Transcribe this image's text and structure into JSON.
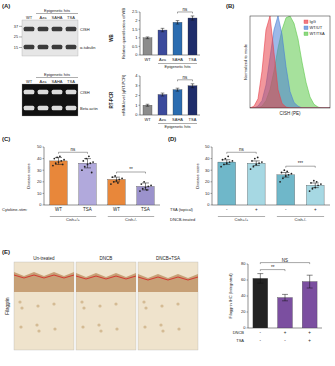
{
  "figure": {
    "panel_labels": [
      "(A)",
      "(B)",
      "(C)",
      "(D)",
      "(E)"
    ],
    "wb": {
      "header": "Epigenetic hits",
      "lanes": [
        "WT",
        "Aza",
        "SAHA",
        "TSA"
      ],
      "markers": [
        37,
        25,
        15
      ],
      "bands": [
        "CISH",
        "α-tubulin"
      ],
      "method": "WB"
    },
    "pcr": {
      "header": "Epigenetic hits",
      "lanes": [
        "WT",
        "Aza",
        "SAHA",
        "TSA"
      ],
      "bands": [
        "CISH",
        "Beta actin"
      ],
      "method": "RT-PCR"
    },
    "ihc": {
      "stain": "Filaggrin",
      "images": [
        "Un-treated",
        "DNCB",
        "DNCB+TSA"
      ]
    }
  },
  "chart_data": [
    {
      "type": "bar",
      "y_label": "Relative quantification of WB",
      "categories": [
        "WT",
        "Aza",
        "SAHA",
        "TSA"
      ],
      "values": [
        1,
        1.45,
        1.9,
        2.15
      ],
      "errors": [
        0.05,
        0.1,
        0.1,
        0.12
      ],
      "colors": [
        "#8c8c8c",
        "#3b4a9c",
        "#2b6cb0",
        "#1f2d6b"
      ],
      "ylim": [
        0,
        2.5
      ],
      "yticks": [
        0,
        0.5,
        1,
        1.5,
        2,
        2.5
      ],
      "grid": false,
      "x_group": "Epigenetic hits",
      "comparisons": [
        {
          "text": "ns",
          "pair": [
            2,
            3
          ]
        }
      ]
    },
    {
      "type": "bar",
      "y_label": "mRNA level (qRT-PCR)",
      "categories": [
        "WT",
        "Aza",
        "SAHA",
        "TSA"
      ],
      "values": [
        1,
        2.1,
        2.6,
        3.0
      ],
      "errors": [
        0.1,
        0.15,
        0.15,
        0.2
      ],
      "colors": [
        "#8c8c8c",
        "#3b4a9c",
        "#2b6cb0",
        "#1f2d6b"
      ],
      "ylim": [
        0,
        4
      ],
      "yticks": [
        0,
        1,
        2,
        3,
        4
      ],
      "grid": false,
      "x_group": "Epigenetic hits",
      "comparisons": [
        {
          "text": "ns",
          "pair": [
            2,
            3
          ]
        }
      ]
    },
    {
      "type": "area",
      "x_label": "CISH (PE)",
      "y_label": "Normalized to mode",
      "x": [
        0,
        5,
        10,
        15,
        20,
        25,
        30,
        35,
        40,
        45,
        50,
        55,
        60,
        65,
        70,
        75,
        80,
        85,
        90,
        95,
        100
      ],
      "xlim": [
        0,
        100
      ],
      "ylim": [
        0,
        100
      ],
      "tick_labels": false,
      "grid": false,
      "legend": "top-right",
      "series": [
        {
          "name": "IgG",
          "color": "#e8414b",
          "values": [
            0,
            2,
            10,
            40,
            85,
            100,
            60,
            20,
            5,
            1,
            0,
            0,
            0,
            0,
            0,
            0,
            0,
            0,
            0,
            0,
            0
          ]
        },
        {
          "name": "WT/UT",
          "color": "#4a7fd6",
          "values": [
            0,
            0,
            2,
            8,
            25,
            55,
            85,
            100,
            80,
            45,
            18,
            6,
            2,
            0,
            0,
            0,
            0,
            0,
            0,
            0,
            0
          ]
        },
        {
          "name": "WT/TSA",
          "color": "#5cc84a",
          "values": [
            0,
            0,
            0,
            2,
            8,
            20,
            40,
            65,
            85,
            98,
            100,
            92,
            75,
            50,
            28,
            12,
            4,
            1,
            0,
            0,
            0
          ]
        }
      ]
    },
    {
      "type": "bar",
      "y_label": "Disease score",
      "categories": [
        null,
        null,
        null,
        null
      ],
      "values": [
        38,
        36,
        22,
        16
      ],
      "errors": [
        3,
        4,
        2,
        3
      ],
      "colors": [
        "#e8873a",
        "#b1a9dc",
        "#e8873a",
        "#9b92cc"
      ],
      "ylim": [
        0,
        50
      ],
      "yticks": [
        0,
        10,
        20,
        30,
        40,
        50
      ],
      "grid": false,
      "points": [
        [
          34,
          36,
          37,
          38,
          39,
          40,
          41,
          42,
          35
        ],
        [
          30,
          33,
          35,
          36,
          37,
          38,
          40,
          42,
          28
        ],
        [
          18,
          20,
          21,
          22,
          23,
          24,
          25,
          19
        ],
        [
          12,
          14,
          15,
          16,
          17,
          18,
          20,
          13
        ]
      ],
      "x_rows": [
        {
          "label": "Cytokine-stim:",
          "cells": [
            "WT",
            "TSA",
            "WT",
            "TSA"
          ]
        }
      ],
      "groups": [
        "Cish+/+",
        "Cish-/-"
      ],
      "comparisons": [
        {
          "text": "ns",
          "pair": [
            0,
            1
          ]
        },
        {
          "text": "**",
          "pair": [
            2,
            3
          ]
        }
      ]
    },
    {
      "type": "bar",
      "y_label": "Disease score",
      "categories": [
        null,
        null,
        null,
        null
      ],
      "values": [
        37,
        36,
        26,
        17
      ],
      "errors": [
        2,
        2,
        2,
        2
      ],
      "colors": [
        "#6fb7c9",
        "#a6d8e3",
        "#6fb7c9",
        "#a6d8e3"
      ],
      "ylim": [
        0,
        50
      ],
      "yticks": [
        0,
        10,
        20,
        30,
        40,
        50
      ],
      "grid": false,
      "points": [
        [
          33,
          35,
          36,
          37,
          38,
          39,
          40,
          42
        ],
        [
          31,
          33,
          35,
          36,
          37,
          38,
          40,
          41
        ],
        [
          20,
          23,
          25,
          26,
          27,
          28,
          30,
          29
        ],
        [
          12,
          14,
          15,
          17,
          18,
          19,
          21,
          20
        ]
      ],
      "x_rows": [
        {
          "label": "TSA (topical)",
          "cells": [
            "-",
            "+",
            "-",
            "+"
          ]
        }
      ],
      "group_label": "DNCB-treated",
      "groups": [
        "Cish+/+",
        "Cish-/-"
      ],
      "comparisons": [
        {
          "text": "ns",
          "pair": [
            0,
            1
          ]
        },
        {
          "text": "***",
          "pair": [
            2,
            3
          ]
        }
      ]
    },
    {
      "type": "bar",
      "y_label": "Filaggrin IHC (Integrated)",
      "categories": [
        null,
        null,
        null
      ],
      "values": [
        62,
        38,
        58
      ],
      "errors": [
        6,
        4,
        8
      ],
      "colors": [
        "#222222",
        "#7b4fa0",
        "#7b4fa0"
      ],
      "ylim": [
        0,
        80
      ],
      "yticks": [
        0,
        20,
        40,
        60,
        80
      ],
      "grid": false,
      "x_rows": [
        {
          "label": "DNCB",
          "cells": [
            "-",
            "+",
            "+"
          ]
        },
        {
          "label": "TSA",
          "cells": [
            "-",
            "-",
            "+"
          ]
        }
      ],
      "comparisons": [
        {
          "text": "**",
          "pair": [
            0,
            1
          ]
        },
        {
          "text": "NS",
          "pair": [
            0,
            2
          ]
        }
      ]
    }
  ]
}
